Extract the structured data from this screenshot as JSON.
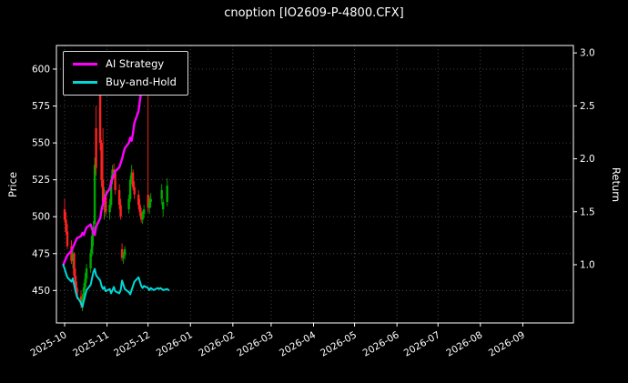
{
  "window": {
    "title": "cnoption [IO2609-P-4800.CFX]"
  },
  "axes": {
    "left_label": "Price",
    "right_label": "Return"
  },
  "legend": {
    "items": [
      {
        "label": "AI Strategy",
        "color": "#ff00ff"
      },
      {
        "label": "Buy-and-Hold",
        "color": "#00d8d8"
      }
    ]
  },
  "chart_data": {
    "type": "candlestick+line",
    "title": "cnoption [IO2609-P-4800.CFX]",
    "x_tick_labels": [
      "2025-10",
      "2025-11",
      "2025-12",
      "2026-01",
      "2026-02",
      "2026-03",
      "2026-04",
      "2026-05",
      "2026-06",
      "2026-07",
      "2026-08",
      "2026-09"
    ],
    "x_range": [
      "2025-09-25",
      "2026-10-08"
    ],
    "price_axis": {
      "label": "Price",
      "ticks": [
        450,
        475,
        500,
        525,
        550,
        575,
        600
      ],
      "range": [
        428,
        616
      ]
    },
    "return_axis": {
      "label": "Return",
      "ticks": [
        1.0,
        1.5,
        2.0,
        2.5,
        3.0
      ],
      "range": [
        0.45,
        3.07
      ]
    },
    "colors": {
      "up": "#00a900",
      "down": "#ff2222",
      "grid": "#555555",
      "background": "#000000",
      "text": "#ffffff",
      "spine": "#ffffff"
    },
    "candles": [
      [
        "2025-10-01",
        505,
        512,
        496,
        498
      ],
      [
        "2025-10-02",
        498,
        503,
        488,
        490
      ],
      [
        "2025-10-03",
        490,
        495,
        478,
        480
      ],
      [
        "2025-10-06",
        480,
        484,
        468,
        470
      ],
      [
        "2025-10-07",
        470,
        478,
        465,
        475
      ],
      [
        "2025-10-08",
        475,
        476,
        458,
        460
      ],
      [
        "2025-10-09",
        460,
        465,
        450,
        452
      ],
      [
        "2025-10-10",
        452,
        456,
        444,
        446
      ],
      [
        "2025-10-13",
        446,
        450,
        438,
        440
      ],
      [
        "2025-10-14",
        440,
        448,
        436,
        445
      ],
      [
        "2025-10-15",
        445,
        455,
        443,
        452
      ],
      [
        "2025-10-16",
        452,
        462,
        450,
        458
      ],
      [
        "2025-10-17",
        458,
        468,
        455,
        465
      ],
      [
        "2025-10-20",
        465,
        478,
        462,
        475
      ],
      [
        "2025-10-21",
        475,
        490,
        473,
        487
      ],
      [
        "2025-10-22",
        487,
        497,
        480,
        493
      ],
      [
        "2025-10-23",
        495,
        540,
        492,
        535
      ],
      [
        "2025-10-24",
        560,
        575,
        528,
        533
      ],
      [
        "2025-10-27",
        598,
        600,
        545,
        550
      ],
      [
        "2025-10-28",
        550,
        552,
        520,
        525
      ],
      [
        "2025-10-29",
        525,
        560,
        505,
        510
      ],
      [
        "2025-10-30",
        510,
        520,
        498,
        515
      ],
      [
        "2025-10-31",
        515,
        518,
        500,
        503
      ],
      [
        "2025-11-03",
        503,
        512,
        498,
        508
      ],
      [
        "2025-11-04",
        508,
        528,
        506,
        525
      ],
      [
        "2025-11-05",
        525,
        535,
        522,
        532
      ],
      [
        "2025-11-06",
        532,
        536,
        526,
        530
      ],
      [
        "2025-11-07",
        530,
        532,
        515,
        518
      ],
      [
        "2025-11-10",
        518,
        522,
        505,
        508
      ],
      [
        "2025-11-11",
        508,
        512,
        498,
        500
      ],
      [
        "2025-11-12",
        478,
        482,
        470,
        472
      ],
      [
        "2025-11-13",
        472,
        476,
        468,
        474
      ],
      [
        "2025-11-14",
        474,
        480,
        471,
        478
      ],
      [
        "2025-11-17",
        505,
        515,
        502,
        512
      ],
      [
        "2025-11-18",
        512,
        528,
        510,
        525
      ],
      [
        "2025-11-19",
        525,
        535,
        522,
        530
      ],
      [
        "2025-11-20",
        530,
        532,
        518,
        520
      ],
      [
        "2025-11-21",
        520,
        524,
        512,
        515
      ],
      [
        "2025-11-24",
        515,
        518,
        505,
        508
      ],
      [
        "2025-11-25",
        508,
        512,
        500,
        503
      ],
      [
        "2025-11-26",
        503,
        506,
        496,
        498
      ],
      [
        "2025-11-27",
        498,
        504,
        495,
        502
      ],
      [
        "2025-11-28",
        502,
        508,
        499,
        505
      ],
      [
        "2025-12-01",
        515,
        585,
        503,
        506
      ],
      [
        "2025-12-02",
        506,
        514,
        502,
        510
      ],
      [
        "2025-12-03",
        510,
        516,
        506,
        512
      ],
      [
        "2025-12-11",
        512,
        522,
        508,
        518
      ],
      [
        "2025-12-12",
        505,
        512,
        500,
        510
      ],
      [
        "2025-12-15",
        510,
        526,
        507,
        521
      ]
    ],
    "series": [
      {
        "name": "AI Strategy",
        "axis": "return",
        "color": "#ff00ff",
        "width": 2.4,
        "points": [
          [
            "2025-09-30",
            1.0
          ],
          [
            "2025-10-01",
            1.03
          ],
          [
            "2025-10-02",
            1.06
          ],
          [
            "2025-10-03",
            1.09
          ],
          [
            "2025-10-06",
            1.13
          ],
          [
            "2025-10-07",
            1.16
          ],
          [
            "2025-10-08",
            1.19
          ],
          [
            "2025-10-09",
            1.22
          ],
          [
            "2025-10-10",
            1.25
          ],
          [
            "2025-10-13",
            1.27
          ],
          [
            "2025-10-14",
            1.3
          ],
          [
            "2025-10-15",
            1.28
          ],
          [
            "2025-10-16",
            1.32
          ],
          [
            "2025-10-17",
            1.35
          ],
          [
            "2025-10-20",
            1.38
          ],
          [
            "2025-10-21",
            1.34
          ],
          [
            "2025-10-22",
            1.3
          ],
          [
            "2025-10-23",
            1.28
          ],
          [
            "2025-10-24",
            1.36
          ],
          [
            "2025-10-27",
            1.44
          ],
          [
            "2025-10-28",
            1.52
          ],
          [
            "2025-10-29",
            1.57
          ],
          [
            "2025-10-30",
            1.62
          ],
          [
            "2025-10-31",
            1.66
          ],
          [
            "2025-11-03",
            1.72
          ],
          [
            "2025-11-04",
            1.78
          ],
          [
            "2025-11-05",
            1.82
          ],
          [
            "2025-11-06",
            1.85
          ],
          [
            "2025-11-07",
            1.88
          ],
          [
            "2025-11-10",
            1.92
          ],
          [
            "2025-11-11",
            1.96
          ],
          [
            "2025-11-12",
            2.0
          ],
          [
            "2025-11-13",
            2.05
          ],
          [
            "2025-11-14",
            2.1
          ],
          [
            "2025-11-17",
            2.15
          ],
          [
            "2025-11-18",
            2.2
          ],
          [
            "2025-11-19",
            2.17
          ],
          [
            "2025-11-20",
            2.24
          ],
          [
            "2025-11-21",
            2.34
          ],
          [
            "2025-11-24",
            2.45
          ],
          [
            "2025-11-25",
            2.55
          ],
          [
            "2025-11-26",
            2.64
          ],
          [
            "2025-11-27",
            2.72
          ],
          [
            "2025-11-28",
            2.78
          ],
          [
            "2025-12-01",
            2.82
          ],
          [
            "2025-12-02",
            2.8
          ],
          [
            "2025-12-03",
            2.84
          ],
          [
            "2025-12-04",
            2.86
          ],
          [
            "2025-12-05",
            2.85
          ]
        ]
      },
      {
        "name": "Buy-and-Hold",
        "axis": "return",
        "color": "#00d8d8",
        "width": 2,
        "points": [
          [
            "2025-09-30",
            1.0
          ],
          [
            "2025-10-01",
            0.96
          ],
          [
            "2025-10-02",
            0.92
          ],
          [
            "2025-10-03",
            0.88
          ],
          [
            "2025-10-06",
            0.84
          ],
          [
            "2025-10-07",
            0.87
          ],
          [
            "2025-10-08",
            0.81
          ],
          [
            "2025-10-09",
            0.75
          ],
          [
            "2025-10-10",
            0.7
          ],
          [
            "2025-10-13",
            0.64
          ],
          [
            "2025-10-14",
            0.6
          ],
          [
            "2025-10-15",
            0.66
          ],
          [
            "2025-10-16",
            0.71
          ],
          [
            "2025-10-17",
            0.76
          ],
          [
            "2025-10-20",
            0.81
          ],
          [
            "2025-10-21",
            0.87
          ],
          [
            "2025-10-22",
            0.93
          ],
          [
            "2025-10-23",
            0.96
          ],
          [
            "2025-10-24",
            0.9
          ],
          [
            "2025-10-27",
            0.85
          ],
          [
            "2025-10-28",
            0.8
          ],
          [
            "2025-10-29",
            0.77
          ],
          [
            "2025-10-30",
            0.79
          ],
          [
            "2025-10-31",
            0.75
          ],
          [
            "2025-11-03",
            0.77
          ],
          [
            "2025-11-04",
            0.73
          ],
          [
            "2025-11-05",
            0.76
          ],
          [
            "2025-11-06",
            0.79
          ],
          [
            "2025-11-07",
            0.75
          ],
          [
            "2025-11-10",
            0.73
          ],
          [
            "2025-11-11",
            0.76
          ],
          [
            "2025-11-12",
            0.85
          ],
          [
            "2025-11-13",
            0.81
          ],
          [
            "2025-11-14",
            0.77
          ],
          [
            "2025-11-17",
            0.74
          ],
          [
            "2025-11-18",
            0.72
          ],
          [
            "2025-11-19",
            0.76
          ],
          [
            "2025-11-20",
            0.8
          ],
          [
            "2025-11-21",
            0.84
          ],
          [
            "2025-11-24",
            0.88
          ],
          [
            "2025-11-25",
            0.84
          ],
          [
            "2025-11-26",
            0.8
          ],
          [
            "2025-11-27",
            0.78
          ],
          [
            "2025-11-28",
            0.8
          ],
          [
            "2025-12-01",
            0.78
          ],
          [
            "2025-12-02",
            0.76
          ],
          [
            "2025-12-03",
            0.78
          ],
          [
            "2025-12-04",
            0.77
          ],
          [
            "2025-12-05",
            0.76
          ],
          [
            "2025-12-08",
            0.78
          ],
          [
            "2025-12-09",
            0.77
          ],
          [
            "2025-12-10",
            0.78
          ],
          [
            "2025-12-11",
            0.77
          ],
          [
            "2025-12-12",
            0.76
          ],
          [
            "2025-12-15",
            0.77
          ],
          [
            "2025-12-16",
            0.76
          ]
        ]
      }
    ]
  }
}
